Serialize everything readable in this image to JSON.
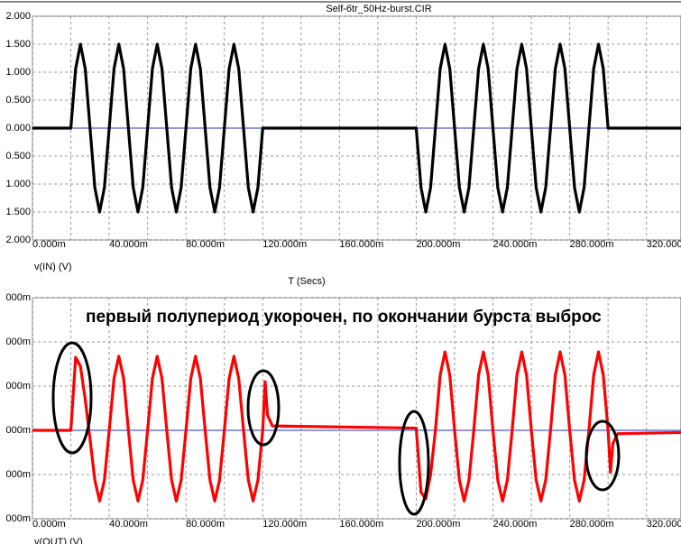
{
  "chart_data": [
    {
      "type": "line",
      "title": "Self-6tr_50Hz-burst.CIR",
      "xlabel": "T (Secs)",
      "xlim": [
        0,
        338
      ],
      "ylim": [
        -2,
        2
      ],
      "xticks": [
        {
          "value": 0,
          "label": "0.000m"
        },
        {
          "value": 40,
          "label": "40.000m"
        },
        {
          "value": 80,
          "label": "80.000m"
        },
        {
          "value": 120,
          "label": "120.000m"
        },
        {
          "value": 160,
          "label": "160.000m"
        },
        {
          "value": 200,
          "label": "200.000m"
        },
        {
          "value": 240,
          "label": "240.000m"
        },
        {
          "value": 280,
          "label": "280.000m"
        },
        {
          "value": 320,
          "label": "320.000m"
        }
      ],
      "xminor_ticks": [
        20,
        60,
        100,
        140,
        180,
        220,
        260,
        300
      ],
      "yticks": [
        {
          "value": 2,
          "label": "2.000"
        },
        {
          "value": 1.5,
          "label": "1.500"
        },
        {
          "value": 1,
          "label": "1.000"
        },
        {
          "value": 0.5,
          "label": "0.500"
        },
        {
          "value": 0,
          "label": "0.000"
        },
        {
          "value": -0.5,
          "label": "0.500"
        },
        {
          "value": -1,
          "label": "1.000"
        },
        {
          "value": -1.5,
          "label": "1.500"
        },
        {
          "value": -2,
          "label": "2.000"
        }
      ],
      "grid": true,
      "x": [
        0,
        20,
        22.5,
        25,
        27.5,
        30,
        32.5,
        35,
        37.5,
        40,
        42.5,
        45,
        47.5,
        50,
        52.5,
        55,
        57.5,
        60,
        62.5,
        65,
        67.5,
        70,
        72.5,
        75,
        77.5,
        80,
        82.5,
        85,
        87.5,
        90,
        92.5,
        95,
        97.5,
        100,
        102.5,
        105,
        107.5,
        110,
        112.5,
        115,
        117.5,
        120,
        200,
        202.5,
        205,
        207.5,
        210,
        212.5,
        215,
        217.5,
        220,
        222.5,
        225,
        227.5,
        230,
        232.5,
        235,
        237.5,
        240,
        242.5,
        245,
        247.5,
        250,
        252.5,
        255,
        257.5,
        260,
        262.5,
        265,
        267.5,
        270,
        272.5,
        275,
        277.5,
        280,
        282.5,
        285,
        287.5,
        290,
        292.5,
        295,
        297.5,
        300,
        338
      ],
      "series": [
        {
          "name": "v(IN) (V)",
          "color": "#000000",
          "values": [
            0,
            0,
            1.061,
            1.5,
            1.061,
            0,
            -1.061,
            -1.5,
            -1.061,
            0,
            1.061,
            1.5,
            1.061,
            0,
            -1.061,
            -1.5,
            -1.061,
            0,
            1.061,
            1.5,
            1.061,
            0,
            -1.061,
            -1.5,
            -1.061,
            0,
            1.061,
            1.5,
            1.061,
            0,
            -1.061,
            -1.5,
            -1.061,
            0,
            1.061,
            1.5,
            1.061,
            0,
            -1.061,
            -1.5,
            -1.061,
            0,
            0,
            -1.061,
            -1.5,
            -1.061,
            0,
            1.061,
            1.5,
            1.061,
            0,
            -1.061,
            -1.5,
            -1.061,
            0,
            1.061,
            1.5,
            1.061,
            0,
            -1.061,
            -1.5,
            -1.061,
            0,
            1.061,
            1.5,
            1.061,
            0,
            -1.061,
            -1.5,
            -1.061,
            0,
            1.061,
            1.5,
            1.061,
            0,
            -1.061,
            -1.5,
            -1.061,
            0,
            1.061,
            1.5,
            1.061,
            0,
            0
          ]
        }
      ]
    },
    {
      "type": "line",
      "annotation": "первый полупериод укорочен, по окончании бурста выброс",
      "xlim": [
        0,
        338
      ],
      "ylim": [
        -400,
        600
      ],
      "xticks": [
        {
          "value": 0,
          "label": "0.000m"
        },
        {
          "value": 40,
          "label": "40.000m"
        },
        {
          "value": 80,
          "label": "80.000m"
        },
        {
          "value": 120,
          "label": "120.000m"
        },
        {
          "value": 160,
          "label": "160.000m"
        },
        {
          "value": 200,
          "label": "200.000m"
        },
        {
          "value": 240,
          "label": "240.000m"
        },
        {
          "value": 280,
          "label": "280.000m"
        },
        {
          "value": 320,
          "label": "320.000m"
        }
      ],
      "xminor_ticks": [
        20,
        60,
        100,
        140,
        180,
        220,
        260,
        300
      ],
      "yticks": [
        {
          "value": 600,
          "label": "000m"
        },
        {
          "value": 400,
          "label": "000m"
        },
        {
          "value": 200,
          "label": "000m"
        },
        {
          "value": 0,
          "label": "000m"
        },
        {
          "value": -200,
          "label": "000m"
        },
        {
          "value": -400,
          "label": "000m"
        }
      ],
      "grid": true,
      "x": [
        0,
        20,
        22.5,
        25,
        27.5,
        30,
        32.5,
        35,
        37.5,
        40,
        42.5,
        45,
        47.5,
        50,
        52.5,
        55,
        57.5,
        60,
        62.5,
        65,
        67.5,
        70,
        72.5,
        75,
        77.5,
        80,
        82.5,
        85,
        87.5,
        90,
        92.5,
        95,
        97.5,
        100,
        102.5,
        105,
        107.5,
        110,
        112.5,
        115,
        117.5,
        120,
        121.25,
        122.5,
        125,
        200,
        202.5,
        205,
        207.5,
        210,
        212.5,
        215,
        217.5,
        220,
        222.5,
        225,
        227.5,
        230,
        232.5,
        235,
        237.5,
        240,
        242.5,
        245,
        247.5,
        250,
        252.5,
        255,
        257.5,
        260,
        262.5,
        265,
        267.5,
        270,
        272.5,
        275,
        277.5,
        280,
        282.5,
        285,
        287.5,
        290,
        292.5,
        295,
        297.5,
        300,
        301.25,
        302.5,
        305,
        338
      ],
      "series": [
        {
          "name": "v(OUT) (V)",
          "color": "#ff0000",
          "values": [
            0,
            0,
            330,
            290,
            140,
            -40,
            -225,
            -320,
            -225,
            0,
            235,
            335,
            235,
            0,
            -225,
            -320,
            -225,
            0,
            235,
            335,
            235,
            0,
            -225,
            -320,
            -225,
            0,
            235,
            335,
            235,
            0,
            -225,
            -320,
            -225,
            0,
            235,
            335,
            235,
            0,
            -225,
            -320,
            -225,
            0,
            220,
            70,
            20,
            10,
            -280,
            -310,
            -200,
            0,
            250,
            355,
            250,
            0,
            -225,
            -320,
            -225,
            0,
            250,
            355,
            250,
            0,
            -225,
            -320,
            -225,
            0,
            250,
            355,
            250,
            0,
            -225,
            -320,
            -225,
            0,
            250,
            355,
            250,
            0,
            -225,
            -320,
            -225,
            0,
            250,
            355,
            250,
            0,
            -190,
            -60,
            -15,
            -10
          ]
        }
      ]
    }
  ]
}
